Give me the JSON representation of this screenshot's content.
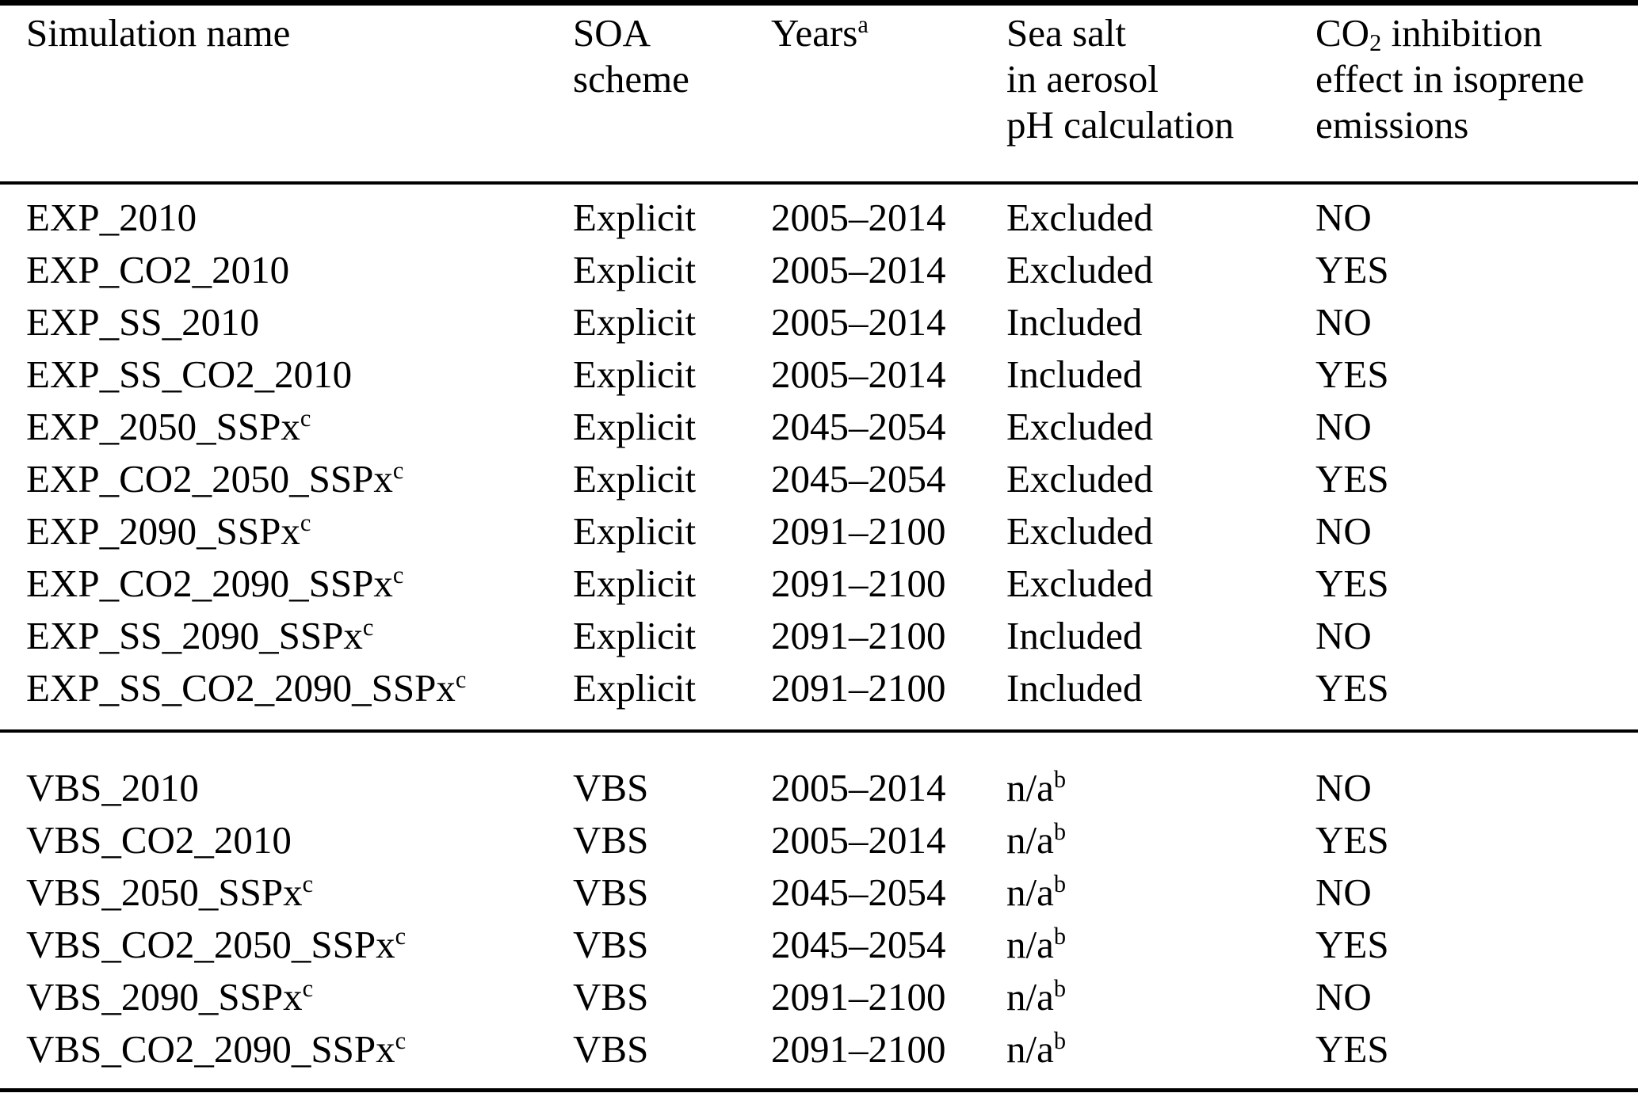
{
  "colors": {
    "background": "#ffffff",
    "text": "#000000",
    "rules": "#000000"
  },
  "table": {
    "columns": [
      {
        "id": "simulation-name",
        "segments": [
          {
            "t": "Simulation name"
          }
        ]
      },
      {
        "id": "soa-scheme",
        "segments": [
          {
            "t": "SOA"
          },
          {
            "br": true
          },
          {
            "t": "scheme"
          }
        ]
      },
      {
        "id": "years",
        "segments": [
          {
            "t": "Years"
          },
          {
            "sup": "a"
          }
        ]
      },
      {
        "id": "sea-salt-ph",
        "segments": [
          {
            "t": "Sea salt"
          },
          {
            "br": true
          },
          {
            "t": "in aerosol"
          },
          {
            "br": true
          },
          {
            "t": "pH calculation"
          }
        ]
      },
      {
        "id": "co2-inhibition",
        "segments": [
          {
            "t": "CO"
          },
          {
            "sub": "2"
          },
          {
            "t": " inhibition"
          },
          {
            "br": true
          },
          {
            "t": "effect in isoprene"
          },
          {
            "br": true
          },
          {
            "t": "emissions"
          }
        ]
      }
    ],
    "groups": [
      {
        "id": "explicit-group",
        "rows": [
          {
            "name": "EXP_2010",
            "name_sup": "",
            "soa_scheme": "Explicit",
            "years": "2005–2014",
            "sea_salt": "Excluded",
            "sea_salt_sup": "",
            "co2_inhibition": "NO"
          },
          {
            "name": "EXP_CO2_2010",
            "name_sup": "",
            "soa_scheme": "Explicit",
            "years": "2005–2014",
            "sea_salt": "Excluded",
            "sea_salt_sup": "",
            "co2_inhibition": "YES"
          },
          {
            "name": "EXP_SS_2010",
            "name_sup": "",
            "soa_scheme": "Explicit",
            "years": "2005–2014",
            "sea_salt": "Included",
            "sea_salt_sup": "",
            "co2_inhibition": "NO"
          },
          {
            "name": "EXP_SS_CO2_2010",
            "name_sup": "",
            "soa_scheme": "Explicit",
            "years": "2005–2014",
            "sea_salt": "Included",
            "sea_salt_sup": "",
            "co2_inhibition": "YES"
          },
          {
            "name": "EXP_2050_SSPx",
            "name_sup": "c",
            "soa_scheme": "Explicit",
            "years": "2045–2054",
            "sea_salt": "Excluded",
            "sea_salt_sup": "",
            "co2_inhibition": "NO"
          },
          {
            "name": "EXP_CO2_2050_SSPx",
            "name_sup": "c",
            "soa_scheme": "Explicit",
            "years": "2045–2054",
            "sea_salt": "Excluded",
            "sea_salt_sup": "",
            "co2_inhibition": "YES"
          },
          {
            "name": "EXP_2090_SSPx",
            "name_sup": "c",
            "soa_scheme": "Explicit",
            "years": "2091–2100",
            "sea_salt": "Excluded",
            "sea_salt_sup": "",
            "co2_inhibition": "NO"
          },
          {
            "name": "EXP_CO2_2090_SSPx",
            "name_sup": "c",
            "soa_scheme": "Explicit",
            "years": "2091–2100",
            "sea_salt": "Excluded",
            "sea_salt_sup": "",
            "co2_inhibition": "YES"
          },
          {
            "name": "EXP_SS_2090_SSPx",
            "name_sup": "c",
            "soa_scheme": "Explicit",
            "years": "2091–2100",
            "sea_salt": "Included",
            "sea_salt_sup": "",
            "co2_inhibition": "NO"
          },
          {
            "name": "EXP_SS_CO2_2090_SSPx",
            "name_sup": "c",
            "soa_scheme": "Explicit",
            "years": "2091–2100",
            "sea_salt": "Included",
            "sea_salt_sup": "",
            "co2_inhibition": "YES"
          }
        ]
      },
      {
        "id": "vbs-group",
        "rows": [
          {
            "name": "VBS_2010",
            "name_sup": "",
            "soa_scheme": "VBS",
            "years": "2005–2014",
            "sea_salt": "n/a",
            "sea_salt_sup": "b",
            "co2_inhibition": "NO"
          },
          {
            "name": "VBS_CO2_2010",
            "name_sup": "",
            "soa_scheme": "VBS",
            "years": "2005–2014",
            "sea_salt": "n/a",
            "sea_salt_sup": "b",
            "co2_inhibition": "YES"
          },
          {
            "name": "VBS_2050_SSPx",
            "name_sup": "c",
            "soa_scheme": "VBS",
            "years": "2045–2054",
            "sea_salt": "n/a",
            "sea_salt_sup": "b",
            "co2_inhibition": "NO"
          },
          {
            "name": "VBS_CO2_2050_SSPx",
            "name_sup": "c",
            "soa_scheme": "VBS",
            "years": "2045–2054",
            "sea_salt": "n/a",
            "sea_salt_sup": "b",
            "co2_inhibition": "YES"
          },
          {
            "name": "VBS_2090_SSPx",
            "name_sup": "c",
            "soa_scheme": "VBS",
            "years": "2091–2100",
            "sea_salt": "n/a",
            "sea_salt_sup": "b",
            "co2_inhibition": "NO"
          },
          {
            "name": "VBS_CO2_2090_SSPx",
            "name_sup": "c",
            "soa_scheme": "VBS",
            "years": "2091–2100",
            "sea_salt": "n/a",
            "sea_salt_sup": "b",
            "co2_inhibition": "YES"
          }
        ]
      }
    ]
  }
}
